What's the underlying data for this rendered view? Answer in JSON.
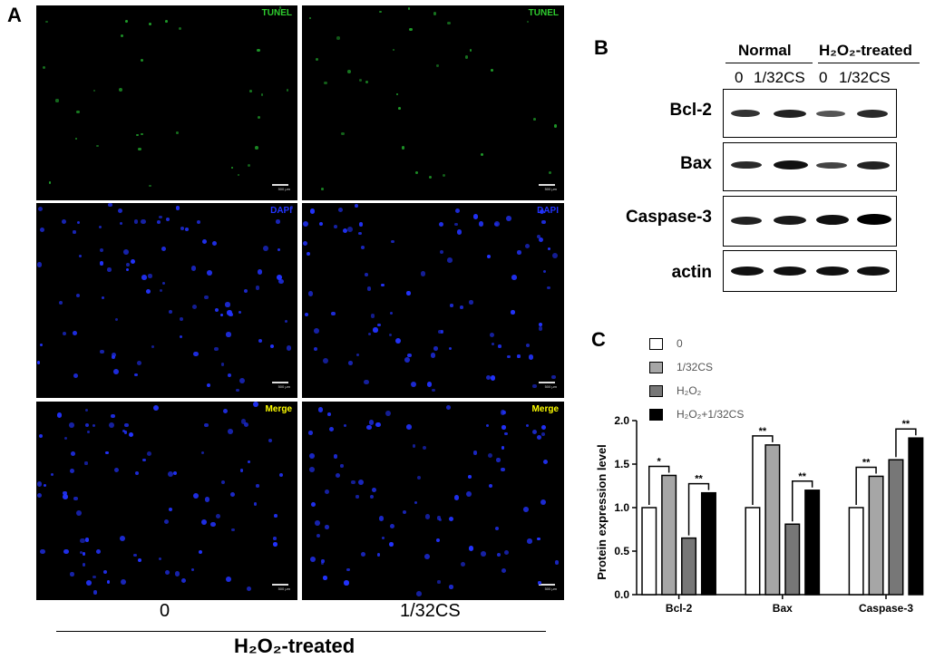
{
  "panel_a": {
    "letter": "A",
    "rows": [
      {
        "label": "TUNEL",
        "label_color": "#2ecc2e",
        "dot_color": "#1f9e2a"
      },
      {
        "label": "DAPI",
        "label_color": "#2233ff",
        "dot_color": "#2233ff"
      },
      {
        "label": "Merge",
        "label_color": "#ffff00",
        "dot_color": "#2233ff"
      }
    ],
    "scale_label": "500 μm",
    "columns": [
      "0",
      "1/32CS"
    ],
    "group_label": "H₂O₂-treated"
  },
  "panel_b": {
    "letter": "B",
    "header_groups": [
      "Normal",
      "H₂O₂-treated"
    ],
    "lane_labels": [
      "0",
      "1/32CS",
      "0",
      "1/32CS"
    ],
    "blots": [
      "Bcl-2",
      "Bax",
      "Caspase-3",
      "actin"
    ]
  },
  "panel_c": {
    "letter": "C",
    "legend_colors": [
      "#ffffff",
      "#a6a6a6",
      "#777777",
      "#000000"
    ]
  },
  "chart_data": {
    "type": "bar",
    "categories": [
      "Bcl-2",
      "Bax",
      "Caspase-3"
    ],
    "series": [
      {
        "name": "0",
        "values": [
          1.0,
          1.0,
          1.0
        ]
      },
      {
        "name": "1/32CS",
        "values": [
          1.37,
          1.72,
          1.36
        ]
      },
      {
        "name": "H₂O₂",
        "values": [
          0.65,
          0.81,
          1.55
        ]
      },
      {
        "name": "H₂O₂+1/32CS",
        "values": [
          1.17,
          1.2,
          1.8
        ]
      }
    ],
    "ylabel": "Protein expression level",
    "ylim": [
      0,
      2.0
    ],
    "yticks": [
      "0.0",
      "0.5",
      "1.0",
      "1.5",
      "2.0"
    ],
    "significance": [
      {
        "category": "Bcl-2",
        "pair": "0 vs 1/32CS",
        "mark": "*"
      },
      {
        "category": "Bcl-2",
        "pair": "H2O2 vs H2O2+1/32CS",
        "mark": "**"
      },
      {
        "category": "Bax",
        "pair": "0 vs 1/32CS",
        "mark": "**"
      },
      {
        "category": "Bax",
        "pair": "H2O2 vs H2O2+1/32CS",
        "mark": "**"
      },
      {
        "category": "Caspase-3",
        "pair": "0 vs 1/32CS",
        "mark": "**"
      },
      {
        "category": "Caspase-3",
        "pair": "H2O2 vs H2O2+1/32CS",
        "mark": "**"
      }
    ]
  }
}
